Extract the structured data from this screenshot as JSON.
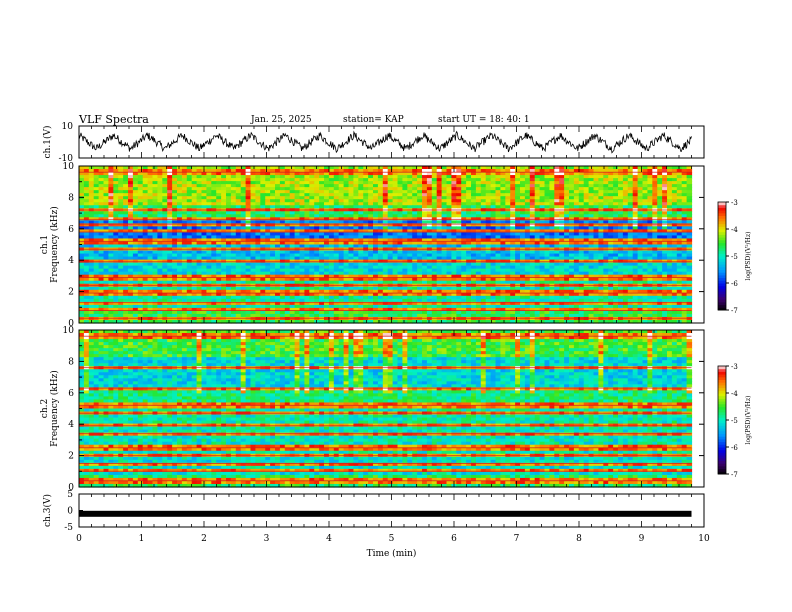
{
  "header": {
    "title": "VLF Spectra",
    "date": "Jan. 25, 2025",
    "station": "station= KAP",
    "start": "start  UT =  18: 40: 1"
  },
  "chart_data": [
    {
      "type": "line",
      "name": "ch1-waveform",
      "ylabel": "ch.1(V)",
      "ylim": [
        -10,
        10
      ],
      "yticks": [
        10,
        -10
      ],
      "xlim": [
        0,
        10
      ],
      "description_values": {
        "approx_period_min": 0.55,
        "amplitude_v": 6
      }
    },
    {
      "type": "heatmap",
      "name": "ch1-spectrogram",
      "ylabel_top": "ch.1",
      "ylabel": "Frequency (kHz)",
      "ylim": [
        0,
        10
      ],
      "yticks": [
        0,
        2,
        4,
        6,
        8,
        10
      ],
      "xlim": [
        0,
        9.8
      ],
      "bands_khz": [
        0.3,
        0.8,
        1.3,
        1.9,
        2.4,
        2.9,
        3.9,
        4.7,
        5.2,
        5.8,
        6.3,
        6.6,
        7.2,
        9.6
      ],
      "colorbar": {
        "label": "log(PSD)(V²/Hz)",
        "ticks": [
          -3,
          -4,
          -5,
          -6,
          -7
        ],
        "range": [
          -7,
          -3
        ]
      }
    },
    {
      "type": "heatmap",
      "name": "ch2-spectrogram",
      "ylabel_top": "ch.2",
      "ylabel": "Frequency (kHz)",
      "ylim": [
        0,
        10
      ],
      "yticks": [
        0,
        2,
        4,
        6,
        8,
        10
      ],
      "xlim": [
        0,
        9.8
      ],
      "bands_khz": [
        0.4,
        1.0,
        1.5,
        2.0,
        2.5,
        3.4,
        3.9,
        4.7,
        5.2,
        6.3,
        7.6,
        9.6
      ],
      "colorbar": {
        "label": "log(PSD)(V²/Hz)",
        "ticks": [
          -3,
          -4,
          -5,
          -6,
          -7
        ],
        "range": [
          -7,
          -3
        ]
      }
    },
    {
      "type": "line",
      "name": "ch3-trace",
      "ylabel": "ch.3(V)",
      "ylim": [
        -5,
        5
      ],
      "yticks": [
        5,
        0,
        -5
      ],
      "values": [
        -1,
        -1
      ],
      "xlim": [
        0,
        9.8
      ]
    }
  ],
  "xaxis": {
    "label": "Time (min)",
    "range": [
      0,
      10
    ],
    "ticks": [
      "0",
      "1",
      "2",
      "3",
      "4",
      "5",
      "6",
      "7",
      "8",
      "9",
      "10"
    ]
  }
}
